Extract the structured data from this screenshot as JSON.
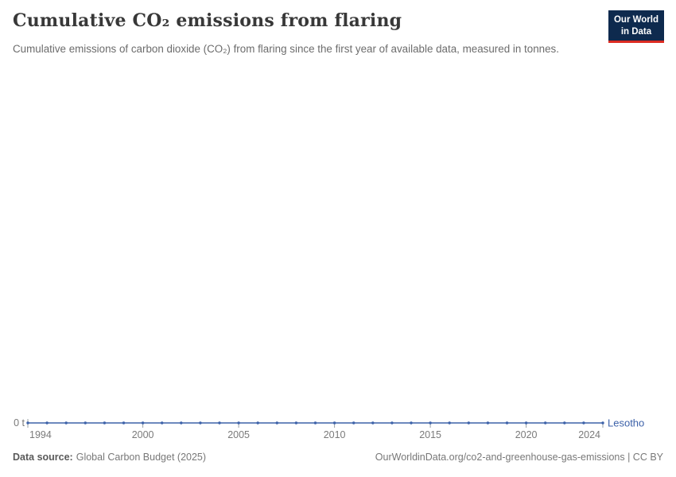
{
  "logo": {
    "line1": "Our World",
    "line2": "in Data"
  },
  "footer": {
    "source_label": "Data source:",
    "source_value": "Global Carbon Budget (2025)",
    "credit": "OurWorldinData.org/co2-and-greenhouse-gas-emissions | CC BY"
  },
  "chart_data": {
    "type": "line",
    "title": "Cumulative CO₂ emissions from flaring",
    "subtitle": "Cumulative emissions of carbon dioxide (CO₂) from flaring since the first year of available data, measured in tonnes.",
    "x": [
      1994,
      1995,
      1996,
      1997,
      1998,
      1999,
      2000,
      2001,
      2002,
      2003,
      2004,
      2005,
      2006,
      2007,
      2008,
      2009,
      2010,
      2011,
      2012,
      2013,
      2014,
      2015,
      2016,
      2017,
      2018,
      2019,
      2020,
      2021,
      2022,
      2023,
      2024
    ],
    "series": [
      {
        "name": "Lesotho",
        "color": "#3d62a9",
        "values": [
          0,
          0,
          0,
          0,
          0,
          0,
          0,
          0,
          0,
          0,
          0,
          0,
          0,
          0,
          0,
          0,
          0,
          0,
          0,
          0,
          0,
          0,
          0,
          0,
          0,
          0,
          0,
          0,
          0,
          0,
          0
        ]
      }
    ],
    "x_ticks": [
      1994,
      2000,
      2005,
      2010,
      2015,
      2020,
      2024
    ],
    "y_ticks": [
      {
        "value": 0,
        "label": "0 t"
      }
    ],
    "ylim": [
      0,
      0
    ],
    "xlabel": "",
    "ylabel": "",
    "grid": false,
    "legend_position": "end-of-line",
    "axis_tick_color": "#9aa0a6",
    "axis_label_color": "#7a7a7a"
  }
}
